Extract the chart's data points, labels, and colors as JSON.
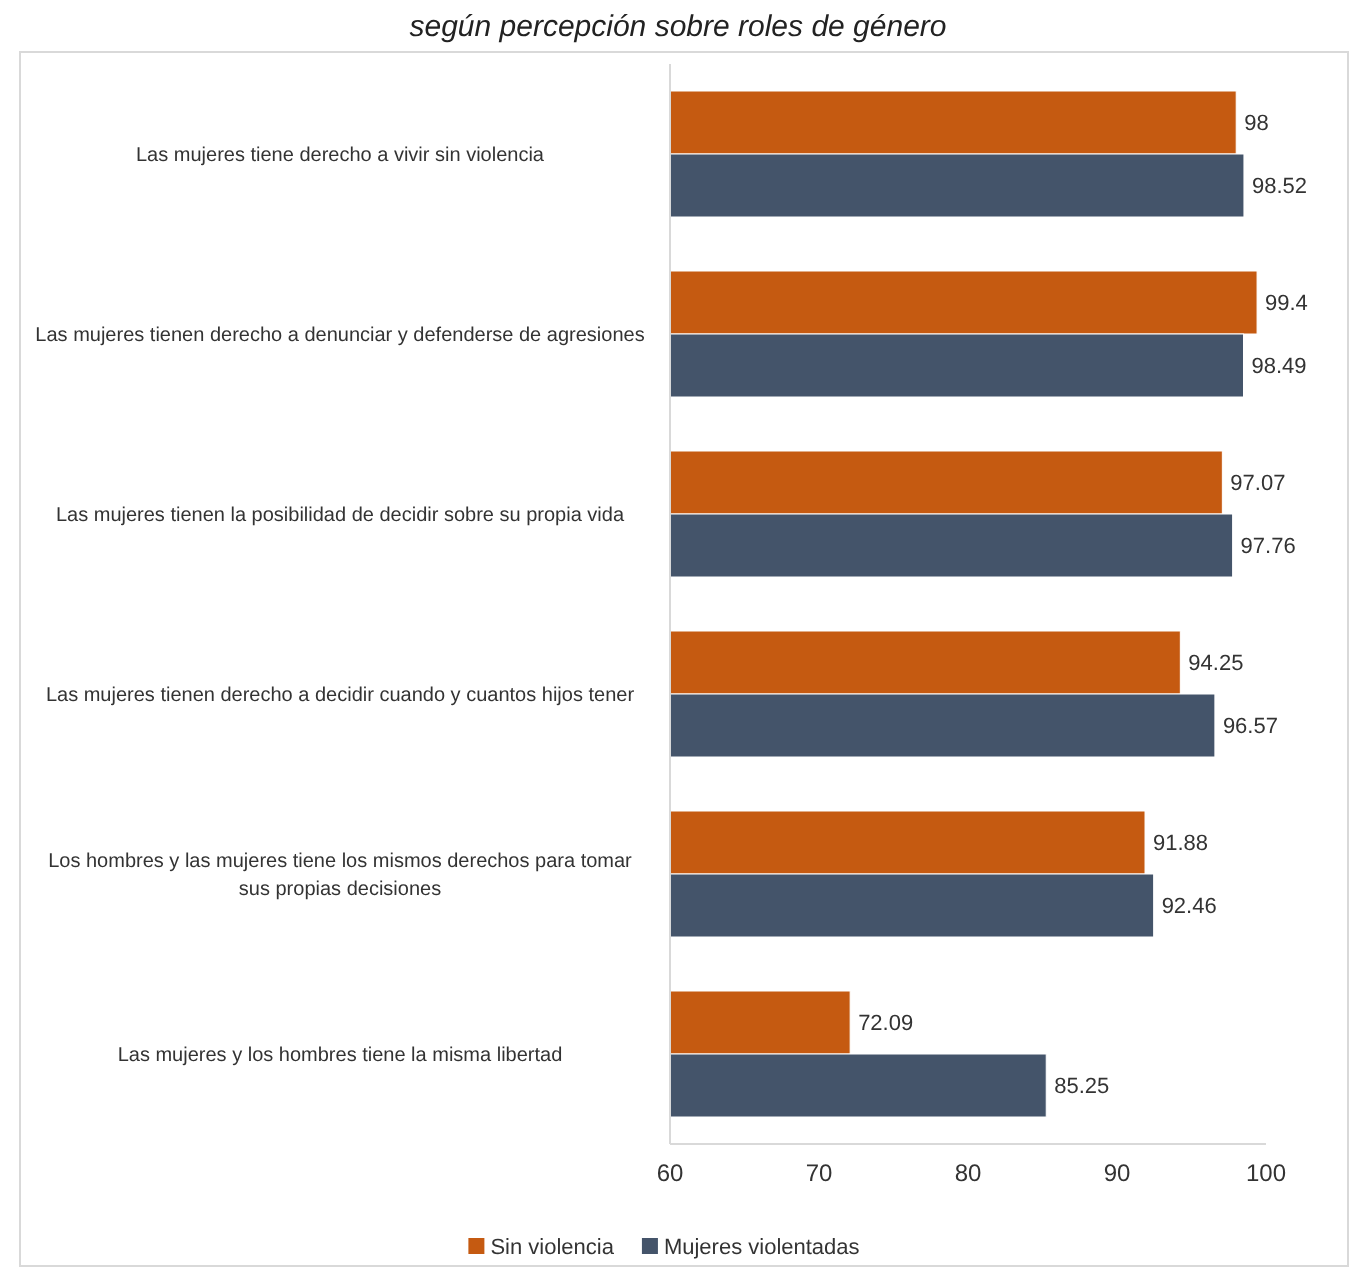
{
  "chart_data": {
    "type": "bar",
    "orientation": "horizontal",
    "title": "según percepción sobre roles de género",
    "categories": [
      "Las mujeres tiene derecho a vivir sin violencia",
      "Las mujeres tienen derecho a denunciar y defenderse de agresiones",
      "Las mujeres tienen la posibilidad de decidir sobre su propia vida",
      "Las mujeres tienen derecho a decidir cuando y cuantos hijos tener",
      "Los hombres y las mujeres tiene los mismos derechos para tomar sus propias decisiones",
      "Las mujeres y los hombres tiene la misma libertad"
    ],
    "series": [
      {
        "name": "Sin violencia",
        "color": "#c55a11",
        "values": [
          98,
          99.4,
          97.07,
          94.25,
          91.88,
          72.09
        ]
      },
      {
        "name": "Mujeres violentadas",
        "color": "#44546a",
        "values": [
          98.52,
          98.49,
          97.76,
          96.57,
          92.46,
          85.25
        ]
      }
    ],
    "xlim": [
      60,
      100
    ],
    "xticks": [
      60,
      70,
      80,
      90,
      100
    ],
    "data_labels": true,
    "legend": "bottom",
    "grid": false
  }
}
